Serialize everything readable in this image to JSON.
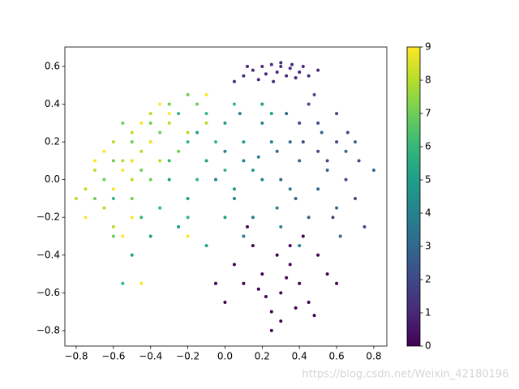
{
  "chart_data": {
    "type": "scatter",
    "x": [
      0.2,
      0.3,
      0.35,
      0.25,
      0.4,
      0.15,
      0.45,
      0.3,
      0.1,
      0.5,
      0.22,
      0.38,
      0.05,
      0.28,
      0.42,
      0.18,
      0.33,
      0.55,
      0.0,
      0.25,
      0.6,
      0.12,
      0.35,
      -0.05,
      0.48,
      0.1,
      0.15,
      0.2,
      0.25,
      0.3,
      0.35,
      0.4,
      0.45,
      0.22,
      0.28,
      0.33,
      0.38,
      0.05,
      0.18,
      0.42,
      0.26,
      0.3,
      0.5,
      0.12,
      0.36,
      0.5,
      0.6,
      0.55,
      0.45,
      0.65,
      0.7,
      0.4,
      0.6,
      0.5,
      0.72,
      0.58,
      0.48,
      0.66,
      0.42,
      0.75,
      0.4,
      0.5,
      0.35,
      0.6,
      0.3,
      0.55,
      0.45,
      0.65,
      0.38,
      0.7,
      0.52,
      0.28,
      0.8,
      0.62,
      0.33,
      0.1,
      0.2,
      0.05,
      0.25,
      0.15,
      0.3,
      0.0,
      0.2,
      0.1,
      0.35,
      -0.05,
      0.4,
      0.18,
      0.08,
      0.28,
      -0.1,
      0.0,
      -0.2,
      0.1,
      -0.3,
      0.05,
      -0.15,
      0.2,
      -0.25,
      0.15,
      -0.4,
      0.0,
      -0.5,
      0.25,
      -0.1,
      -0.2,
      -0.1,
      -0.3,
      0.0,
      -0.4,
      -0.05,
      -0.35,
      -0.25,
      -0.15,
      -0.5,
      -0.45,
      0.05,
      -0.6,
      -0.2,
      -0.55,
      -0.4,
      -0.5,
      -0.3,
      -0.6,
      -0.35,
      -0.45,
      -0.2,
      -0.55,
      -0.65,
      -0.25,
      -0.7,
      -0.5,
      -0.4,
      -0.6,
      -0.15,
      -0.5,
      -0.6,
      -0.4,
      -0.7,
      -0.55,
      -0.3,
      -0.65,
      -0.45,
      -0.75,
      -0.35,
      -0.6,
      -0.2,
      -0.5,
      -0.8,
      -0.1,
      -0.55,
      -0.45,
      -0.65,
      -0.5,
      -0.35,
      -0.6,
      -0.4,
      -0.7,
      -0.3,
      -0.55,
      -0.5,
      -0.45,
      -0.2,
      -0.75,
      -0.1
    ],
    "y": [
      -0.5,
      -0.6,
      -0.45,
      -0.7,
      -0.55,
      -0.35,
      -0.65,
      -0.75,
      -0.55,
      -0.4,
      -0.62,
      -0.68,
      -0.45,
      -0.4,
      -0.3,
      -0.58,
      -0.52,
      -0.5,
      -0.65,
      -0.8,
      -0.55,
      -0.25,
      -0.35,
      -0.55,
      -0.72,
      0.55,
      0.58,
      0.6,
      0.61,
      0.6,
      0.59,
      0.57,
      0.55,
      0.56,
      0.57,
      0.55,
      0.54,
      0.52,
      0.53,
      0.6,
      0.52,
      0.62,
      0.58,
      0.6,
      0.61,
      0.3,
      0.2,
      0.1,
      0.4,
      0.0,
      -0.1,
      0.3,
      0.35,
      0.15,
      0.1,
      -0.2,
      0.45,
      0.25,
      0.2,
      -0.25,
      0.1,
      -0.05,
      0.2,
      -0.15,
      0.0,
      0.05,
      -0.2,
      0.15,
      -0.1,
      0.2,
      0.25,
      0.15,
      0.05,
      -0.3,
      0.35,
      0.1,
      0.0,
      -0.1,
      0.2,
      -0.2,
      -0.25,
      0.15,
      0.3,
      -0.3,
      -0.05,
      0.0,
      -0.35,
      0.12,
      0.35,
      -0.15,
      0.1,
      0.3,
      -0.1,
      0.2,
      0.0,
      -0.05,
      0.25,
      0.4,
      -0.25,
      0.05,
      -0.3,
      -0.2,
      -0.4,
      0.35,
      -0.35,
      0.2,
      0.35,
      0.1,
      0.05,
      0.2,
      0.2,
      -0.15,
      0.35,
      0.0,
      0.1,
      -0.2,
      0.4,
      -0.1,
      -0.2,
      -0.55,
      0.3,
      0.2,
      0.4,
      0.1,
      0.25,
      0.05,
      0.45,
      0.3,
      0.0,
      0.15,
      -0.1,
      -0.1,
      0.0,
      -0.3,
      0.4,
      0.25,
      0.2,
      0.35,
      0.05,
      0.1,
      0.3,
      -0.15,
      0.15,
      -0.05,
      0.1,
      -0.25,
      0.25,
      0.0,
      -0.1,
      0.3,
      0.05,
      0.3,
      0.15,
      -0.2,
      0.4,
      -0.05,
      0.2,
      0.1,
      0.35,
      -0.3,
      0.1,
      -0.55,
      -0.3,
      -0.2,
      0.45
    ],
    "c": [
      0,
      0,
      0,
      0,
      0,
      0,
      0,
      0,
      0,
      0,
      0,
      0,
      0,
      0,
      0,
      0,
      0,
      0,
      0,
      0,
      0,
      0,
      0,
      0,
      0,
      1,
      1,
      1,
      1,
      1,
      1,
      1,
      1,
      1,
      1,
      1,
      1,
      1,
      1,
      1,
      1,
      1,
      1,
      1,
      1,
      2,
      2,
      2,
      2,
      2,
      2,
      2,
      2,
      2,
      2,
      2,
      2,
      2,
      2,
      2,
      3,
      3,
      3,
      3,
      3,
      3,
      3,
      3,
      3,
      3,
      3,
      3,
      3,
      3,
      3,
      4,
      4,
      4,
      4,
      4,
      4,
      4,
      4,
      4,
      4,
      4,
      4,
      4,
      4,
      4,
      5,
      5,
      5,
      5,
      5,
      5,
      5,
      5,
      5,
      5,
      5,
      5,
      5,
      5,
      5,
      6,
      6,
      6,
      6,
      6,
      6,
      6,
      6,
      6,
      6,
      6,
      6,
      6,
      6,
      6,
      7,
      7,
      7,
      7,
      7,
      7,
      7,
      7,
      7,
      7,
      7,
      7,
      7,
      7,
      7,
      8,
      8,
      8,
      8,
      8,
      8,
      8,
      8,
      8,
      8,
      8,
      8,
      8,
      8,
      8,
      9,
      9,
      9,
      9,
      9,
      9,
      9,
      9,
      9,
      9,
      9,
      9,
      9,
      9,
      9
    ],
    "colormap": "viridis",
    "xlim": [
      -0.861,
      0.87
    ],
    "ylim": [
      -0.882,
      0.703
    ],
    "xticks": [
      {
        "value": -0.8,
        "label": "−0.8"
      },
      {
        "value": -0.6,
        "label": "−0.6"
      },
      {
        "value": -0.4,
        "label": "−0.4"
      },
      {
        "value": -0.2,
        "label": "−0.2"
      },
      {
        "value": 0,
        "label": "0.0"
      },
      0.2,
      0.4,
      0.6,
      0.8
    ],
    "yticks": [
      {
        "value": -0.8,
        "label": "−0.8"
      },
      {
        "value": -0.6,
        "label": "−0.6"
      },
      {
        "value": -0.4,
        "label": "−0.4"
      },
      {
        "value": -0.2,
        "label": "−0.2"
      },
      {
        "value": 0,
        "label": "0.0"
      },
      0.2,
      0.4,
      0.6
    ],
    "clim": [
      0,
      9
    ],
    "cticks": [
      0,
      1,
      2,
      3,
      4,
      5,
      6,
      7,
      8,
      9
    ]
  },
  "watermark": "https://blog.csdn.net/Weixin_42180196"
}
